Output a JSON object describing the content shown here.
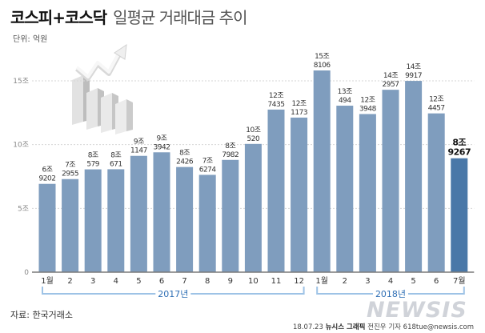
{
  "header": {
    "title_main": "코스피+코스닥",
    "title_sub": "일평균 거래대금 추이",
    "unit": "단위: 억원"
  },
  "footer": {
    "source": "자료: 한국거래소",
    "date": "18.07.23",
    "agency": "뉴시스 그래픽",
    "author": "전진우 기자 618tue@newsis.com",
    "watermark": "NEWSIS"
  },
  "colors": {
    "bar": "#7f9dbe",
    "bar_highlight": "#4a78a8",
    "axis": "#7a7a7a",
    "grid": "#d6d6d6",
    "group_bracket": "#9ec3e6",
    "group_text": "#2f6fb5"
  },
  "chart_data": {
    "type": "bar",
    "ylim": [
      0,
      16
    ],
    "yticks": [
      0,
      5,
      10,
      15
    ],
    "ytick_labels": [
      "0",
      "5조",
      "10조",
      "15조"
    ],
    "categories": [
      "1월",
      "2",
      "3",
      "4",
      "5",
      "6",
      "7",
      "8",
      "9",
      "10",
      "11",
      "12",
      "1월",
      "2",
      "3",
      "4",
      "5",
      "6",
      "7월"
    ],
    "values": [
      6.9202,
      7.2955,
      8.0579,
      8.0671,
      9.1147,
      9.3942,
      8.2426,
      7.6274,
      8.7982,
      10.052,
      12.7435,
      12.1173,
      15.8106,
      13.0494,
      12.3948,
      14.2957,
      14.9917,
      12.4457,
      8.9267
    ],
    "label_top": [
      "6조",
      "7조",
      "8조",
      "8조",
      "9조",
      "9조",
      "8조",
      "7조",
      "8조",
      "10조",
      "12조",
      "12조",
      "15조",
      "13조",
      "12조",
      "14조",
      "14조",
      "12조",
      "8조"
    ],
    "label_bottom": [
      "9202",
      "2955",
      "579",
      "671",
      "1147",
      "3942",
      "2426",
      "6274",
      "7982",
      "520",
      "7435",
      "1173",
      "8106",
      "494",
      "3948",
      "2957",
      "9917",
      "4457",
      "9267"
    ],
    "highlight_index": 18,
    "groups": [
      {
        "label": "2017년",
        "start": 0,
        "end": 11
      },
      {
        "label": "2018년",
        "start": 12,
        "end": 18
      }
    ]
  }
}
